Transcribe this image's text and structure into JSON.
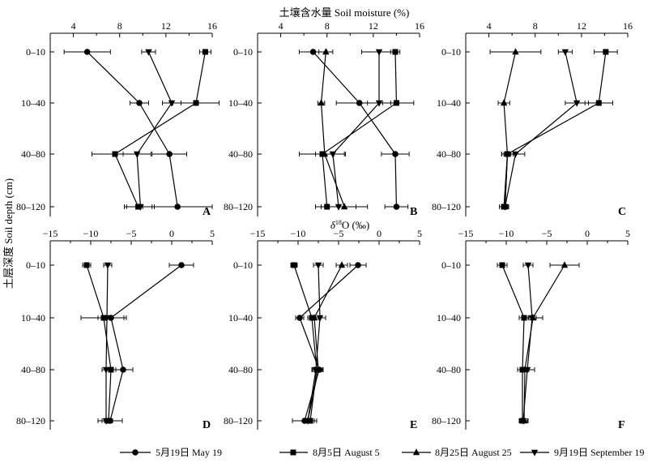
{
  "figure": {
    "top_axis_title": "土壤含水量 Soil moisture (%)",
    "bottom_axis_title_prefix": "δ",
    "bottom_axis_title_sup": "18",
    "bottom_axis_title_suffix": "O (‰)",
    "y_axis_title": "土层深度 Soil depth (cm)"
  },
  "legend": {
    "items": [
      {
        "series": "may19",
        "marker": "circle",
        "label": "5月19日 May 19"
      },
      {
        "series": "aug5",
        "marker": "square",
        "label": "8月5日 August 5"
      },
      {
        "series": "aug25",
        "marker": "triangle-up",
        "label": "8月25日 August 25"
      },
      {
        "series": "sep19",
        "marker": "triangle-down",
        "label": "9月19日 September 19"
      }
    ]
  },
  "chart_data": [
    {
      "panel": "A",
      "type": "line",
      "variable": "soil_moisture",
      "depths": [
        "0–10",
        "10–40",
        "40–80",
        "80–120"
      ],
      "xlim": [
        2,
        16
      ],
      "xticks": [
        4,
        8,
        12,
        16
      ],
      "tick_labels_on": "top",
      "series": [
        {
          "name": "5月19日 May 19",
          "marker": "circle",
          "values": [
            5.2,
            9.7,
            12.3,
            13.0
          ],
          "errors": [
            2.0,
            0.8,
            1.5,
            3.0
          ]
        },
        {
          "name": "8月5日 August 5",
          "marker": "square",
          "values": [
            15.4,
            14.6,
            7.6,
            9.6
          ],
          "errors": [
            0.5,
            2.0,
            2.0,
            1.2
          ]
        },
        {
          "name": "8月25日 August 25",
          "marker": "triangle-up",
          "values": [
            null,
            null,
            null,
            null
          ],
          "errors": [
            null,
            null,
            null,
            null
          ]
        },
        {
          "name": "9月19日 September 19",
          "marker": "triangle-down",
          "values": [
            10.5,
            12.5,
            9.5,
            9.8
          ],
          "errors": [
            0.6,
            0.8,
            1.2,
            1.2
          ]
        }
      ]
    },
    {
      "panel": "B",
      "type": "line",
      "variable": "soil_moisture",
      "depths": [
        "0–10",
        "10–40",
        "40–80",
        "80–120"
      ],
      "xlim": [
        2,
        16
      ],
      "xticks": [
        4,
        8,
        12,
        16
      ],
      "tick_labels_on": "top",
      "series": [
        {
          "name": "5月19日 May 19",
          "marker": "circle",
          "values": [
            6.8,
            10.8,
            13.9,
            14.0
          ],
          "errors": [
            1.2,
            2.0,
            1.2,
            1.0
          ]
        },
        {
          "name": "8月5日 August 5",
          "marker": "square",
          "values": [
            13.9,
            14.0,
            7.6,
            8.0
          ],
          "errors": [
            0.4,
            1.5,
            2.0,
            1.0
          ]
        },
        {
          "name": "8月25日 August 25",
          "marker": "triangle-up",
          "values": [
            7.9,
            7.5,
            7.8,
            9.5
          ],
          "errors": [
            0.6,
            0.3,
            0.8,
            2.0
          ]
        },
        {
          "name": "9月19日 September 19",
          "marker": "triangle-down",
          "values": [
            12.5,
            12.5,
            8.5,
            9.0
          ],
          "errors": [
            1.5,
            1.0,
            1.0,
            1.5
          ]
        }
      ]
    },
    {
      "panel": "C",
      "type": "line",
      "variable": "soil_moisture",
      "depths": [
        "0–10",
        "10–40",
        "40–80",
        "80–120"
      ],
      "xlim": [
        2,
        16
      ],
      "xticks": [
        4,
        8,
        12,
        16
      ],
      "tick_labels_on": "top",
      "series": [
        {
          "name": "5月19日 May 19",
          "marker": "circle",
          "values": [
            null,
            null,
            5.6,
            5.4
          ],
          "errors": [
            null,
            null,
            0.3,
            0.3
          ]
        },
        {
          "name": "8月5日 August 5",
          "marker": "square",
          "values": [
            14.1,
            13.5,
            5.6,
            5.3
          ],
          "errors": [
            1.0,
            1.2,
            0.5,
            0.4
          ]
        },
        {
          "name": "8月25日 August 25",
          "marker": "triangle-up",
          "values": [
            6.3,
            5.3,
            5.6,
            5.4
          ],
          "errors": [
            2.2,
            0.5,
            0.5,
            0.3
          ]
        },
        {
          "name": "9月19日 September 19",
          "marker": "triangle-down",
          "values": [
            10.6,
            11.6,
            6.3,
            5.4
          ],
          "errors": [
            0.6,
            1.0,
            0.8,
            0.3
          ]
        }
      ]
    },
    {
      "panel": "D",
      "type": "line",
      "variable": "delta18O",
      "depths": [
        "0–10",
        "10–40",
        "40–80",
        "80–120"
      ],
      "xlim": [
        -15,
        5
      ],
      "xticks": [
        -15,
        -10,
        -5,
        0,
        5
      ],
      "tick_labels_on": "top",
      "series": [
        {
          "name": "5月19日 May 19",
          "marker": "circle",
          "values": [
            1.2,
            -7.5,
            -6.0,
            -7.6
          ],
          "errors": [
            1.5,
            1.6,
            1.2,
            1.5
          ]
        },
        {
          "name": "8月5日 August 5",
          "marker": "square",
          "values": [
            -10.5,
            -8.4,
            -7.5,
            -7.8
          ],
          "errors": [
            0.5,
            2.8,
            0.6,
            0.5
          ]
        },
        {
          "name": "8月25日 August 25",
          "marker": "triangle-up",
          "values": [
            null,
            null,
            null,
            null
          ],
          "errors": [
            null,
            null,
            null,
            null
          ]
        },
        {
          "name": "9月19日 September 19",
          "marker": "triangle-down",
          "values": [
            -7.9,
            -8.0,
            -8.1,
            -8.1
          ],
          "errors": [
            0.5,
            0.5,
            0.5,
            0.5
          ]
        }
      ]
    },
    {
      "panel": "E",
      "type": "line",
      "variable": "delta18O",
      "depths": [
        "0–10",
        "10–40",
        "40–80",
        "80–120"
      ],
      "xlim": [
        -15,
        5
      ],
      "xticks": [
        -15,
        -10,
        -5,
        0,
        5
      ],
      "tick_labels_on": "top",
      "series": [
        {
          "name": "5月19日 May 19",
          "marker": "circle",
          "values": [
            -2.6,
            -9.8,
            -7.4,
            -9.2
          ],
          "errors": [
            1.0,
            0.5,
            0.5,
            1.5
          ]
        },
        {
          "name": "8月5日 August 5",
          "marker": "square",
          "values": [
            -10.5,
            -8.3,
            -7.7,
            -8.5
          ],
          "errors": [
            0.4,
            0.5,
            0.5,
            0.5
          ]
        },
        {
          "name": "8月25日 August 25",
          "marker": "triangle-up",
          "values": [
            -4.6,
            -8.0,
            -7.5,
            -8.8
          ],
          "errors": [
            0.7,
            0.5,
            0.5,
            0.5
          ]
        },
        {
          "name": "9月19日 September 19",
          "marker": "triangle-down",
          "values": [
            -7.5,
            -7.3,
            -7.8,
            -8.8
          ],
          "errors": [
            0.6,
            0.7,
            0.5,
            0.5
          ]
        }
      ]
    },
    {
      "panel": "F",
      "type": "line",
      "variable": "delta18O",
      "depths": [
        "0–10",
        "10–40",
        "40–80",
        "80–120"
      ],
      "xlim": [
        -15,
        5
      ],
      "xticks": [
        -15,
        -10,
        -5,
        0,
        5
      ],
      "tick_labels_on": "top",
      "series": [
        {
          "name": "5月19日 May 19",
          "marker": "circle",
          "values": [
            null,
            null,
            null,
            null
          ],
          "errors": [
            null,
            null,
            null,
            null
          ]
        },
        {
          "name": "8月5日 August 5",
          "marker": "square",
          "values": [
            -10.5,
            -7.8,
            -8.0,
            -8.0
          ],
          "errors": [
            0.6,
            0.6,
            0.6,
            0.4
          ]
        },
        {
          "name": "8月25日 August 25",
          "marker": "triangle-up",
          "values": [
            -2.8,
            -6.7,
            -7.7,
            -7.8
          ],
          "errors": [
            1.8,
            1.2,
            0.5,
            0.5
          ]
        },
        {
          "name": "9月19日 September 19",
          "marker": "triangle-down",
          "values": [
            -7.3,
            -6.8,
            -7.4,
            -7.9
          ],
          "errors": [
            0.6,
            0.5,
            0.9,
            0.5
          ]
        }
      ]
    }
  ]
}
